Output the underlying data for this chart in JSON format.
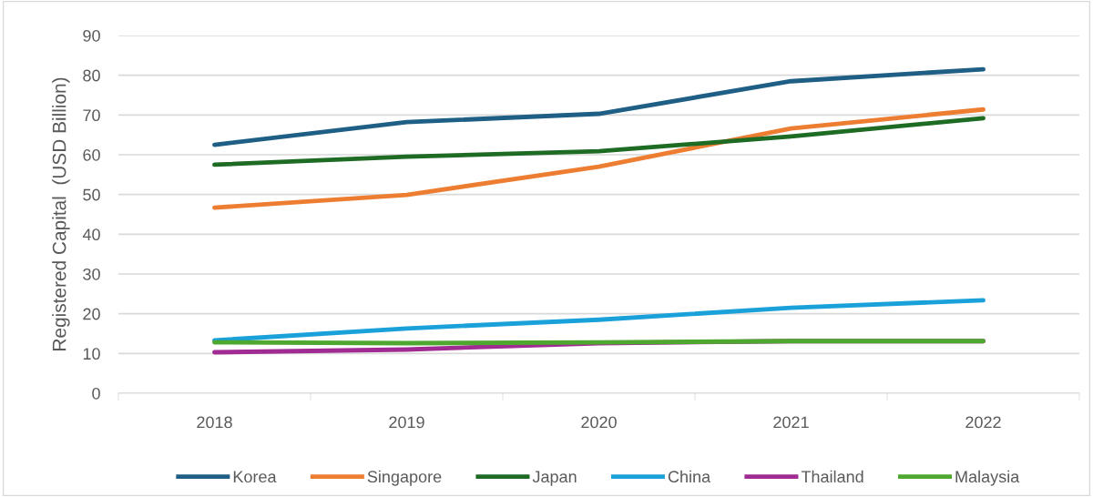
{
  "chart_data": {
    "type": "line",
    "ylabel": "Registered Capital  (USD Billion)",
    "categories": [
      "2018",
      "2019",
      "2020",
      "2021",
      "2022"
    ],
    "series": [
      {
        "name": "Korea",
        "color": "#1f5f85",
        "values": [
          62.5,
          68.2,
          70.3,
          78.5,
          81.5
        ]
      },
      {
        "name": "Singapore",
        "color": "#ed7d31",
        "values": [
          46.7,
          49.9,
          57.0,
          66.6,
          71.4
        ]
      },
      {
        "name": "Japan",
        "color": "#1e6b24",
        "values": [
          57.5,
          59.5,
          60.9,
          64.6,
          69.2
        ]
      },
      {
        "name": "China",
        "color": "#1ba1d9",
        "values": [
          13.3,
          16.3,
          18.5,
          21.5,
          23.4
        ]
      },
      {
        "name": "Thailand",
        "color": "#a02b93",
        "values": [
          10.3,
          11.0,
          12.6,
          13.1,
          13.1
        ]
      },
      {
        "name": "Malaysia",
        "color": "#4ea72e",
        "values": [
          12.8,
          12.6,
          12.8,
          13.1,
          13.1
        ]
      }
    ],
    "ylim": [
      0,
      90
    ],
    "yticks": [
      0,
      10,
      20,
      30,
      40,
      50,
      60,
      70,
      80,
      90
    ],
    "grid": "y",
    "legend": "bottom",
    "marker": "none",
    "line_style": "solid"
  }
}
